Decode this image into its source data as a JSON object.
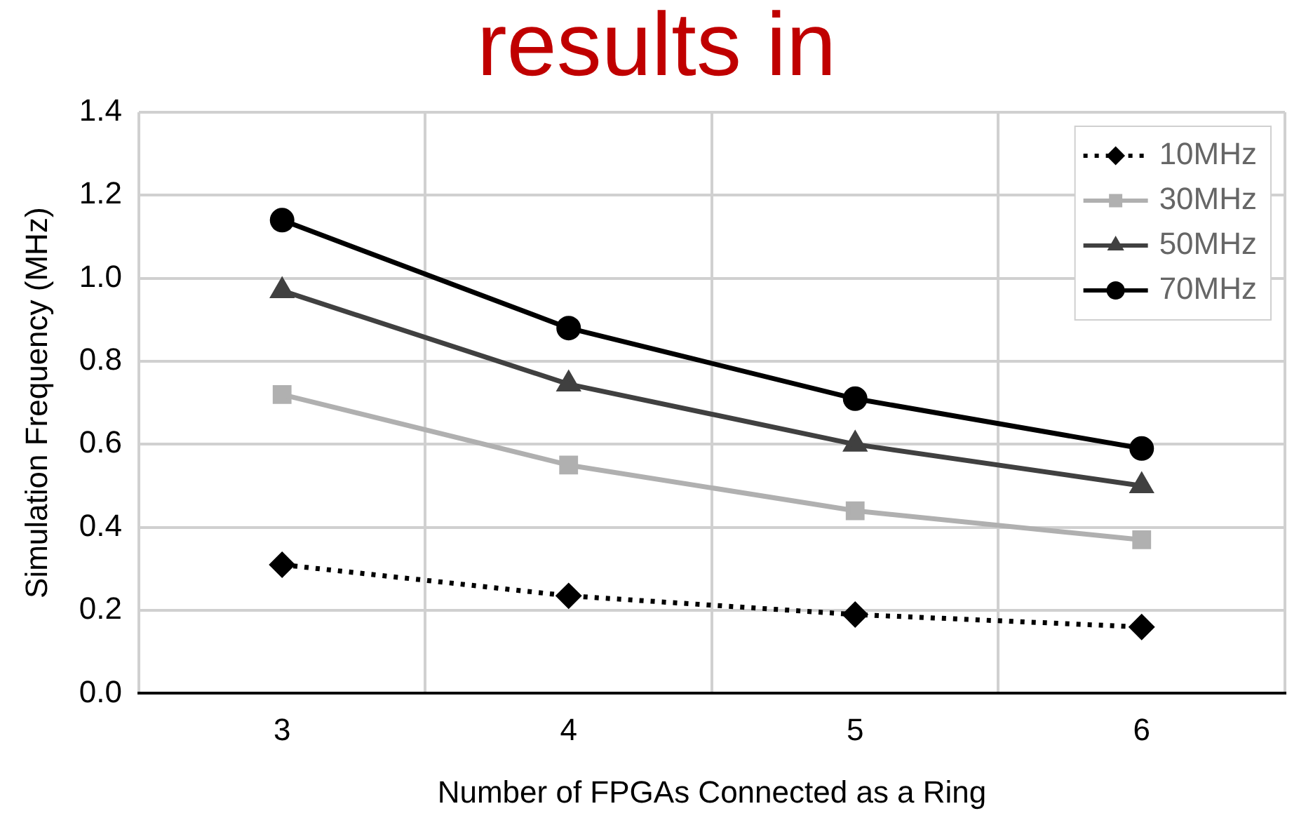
{
  "chart_data": {
    "type": "line",
    "xlabel": "Number of FPGAs Connected as a Ring",
    "ylabel": "Simulation Frequency (MHz)",
    "annotations": [
      "results in"
    ],
    "categories": [
      "3",
      "4",
      "5",
      "6"
    ],
    "series": [
      {
        "name": "10MHz",
        "color": "#000000",
        "values": [
          0.31,
          0.235,
          0.19,
          0.16
        ],
        "marker": "diamond",
        "line_style": "dotted"
      },
      {
        "name": "30MHz",
        "color": "#b0b0b0",
        "values": [
          0.72,
          0.55,
          0.44,
          0.37
        ],
        "marker": "square",
        "line_style": "solid"
      },
      {
        "name": "50MHz",
        "color": "#404040",
        "values": [
          0.97,
          0.745,
          0.6,
          0.5
        ],
        "marker": "triangle",
        "line_style": "solid"
      },
      {
        "name": "70MHz",
        "color": "#000000",
        "values": [
          1.14,
          0.88,
          0.71,
          0.59
        ],
        "marker": "circle",
        "line_style": "solid"
      }
    ],
    "ylim": [
      0,
      1.4
    ],
    "yticks": [
      {
        "value": 0,
        "label": "0.0"
      },
      {
        "value": 0.2,
        "label": "0.2"
      },
      {
        "value": 0.4,
        "label": "0.4"
      },
      {
        "value": 0.6,
        "label": "0.6"
      },
      {
        "value": 0.8,
        "label": "0.8"
      },
      {
        "value": 1,
        "label": "1.0"
      },
      {
        "value": 1.2,
        "label": "1.2"
      },
      {
        "value": 1.4,
        "label": "1.4"
      }
    ],
    "grid": true,
    "legend": "top right"
  }
}
